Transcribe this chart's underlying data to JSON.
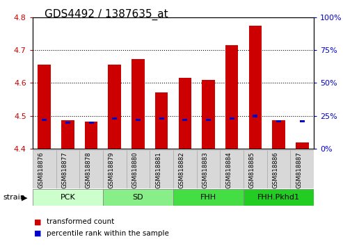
{
  "title": "GDS4492 / 1387635_at",
  "samples": [
    "GSM818876",
    "GSM818877",
    "GSM818878",
    "GSM818879",
    "GSM818880",
    "GSM818881",
    "GSM818882",
    "GSM818883",
    "GSM818884",
    "GSM818885",
    "GSM818886",
    "GSM818887"
  ],
  "transformed_counts": [
    4.655,
    4.487,
    4.483,
    4.655,
    4.672,
    4.572,
    4.615,
    4.61,
    4.714,
    4.775,
    4.487,
    4.42
  ],
  "percentile_ranks": [
    22,
    20,
    20,
    23,
    22,
    23,
    22,
    22,
    23,
    25,
    21,
    21
  ],
  "bar_bottom": 4.4,
  "ylim_left": [
    4.4,
    4.8
  ],
  "ylim_right": [
    0,
    100
  ],
  "yticks_left": [
    4.4,
    4.5,
    4.6,
    4.7,
    4.8
  ],
  "yticks_right": [
    0,
    25,
    50,
    75,
    100
  ],
  "bar_color": "#cc0000",
  "percentile_color": "#0000cc",
  "groups": [
    {
      "name": "PCK",
      "start": 0,
      "end": 3
    },
    {
      "name": "SD",
      "start": 3,
      "end": 6
    },
    {
      "name": "FHH",
      "start": 6,
      "end": 9
    },
    {
      "name": "FHH.Pkhd1",
      "start": 9,
      "end": 12
    }
  ],
  "group_colors": [
    "#ccffcc",
    "#88ee88",
    "#44dd44",
    "#22cc22"
  ],
  "legend_items": [
    {
      "label": "transformed count",
      "color": "#cc0000"
    },
    {
      "label": "percentile rank within the sample",
      "color": "#0000cc"
    }
  ],
  "bar_width": 0.55,
  "label_fontsize": 7,
  "axis_label_fontsize": 8,
  "title_fontsize": 11
}
